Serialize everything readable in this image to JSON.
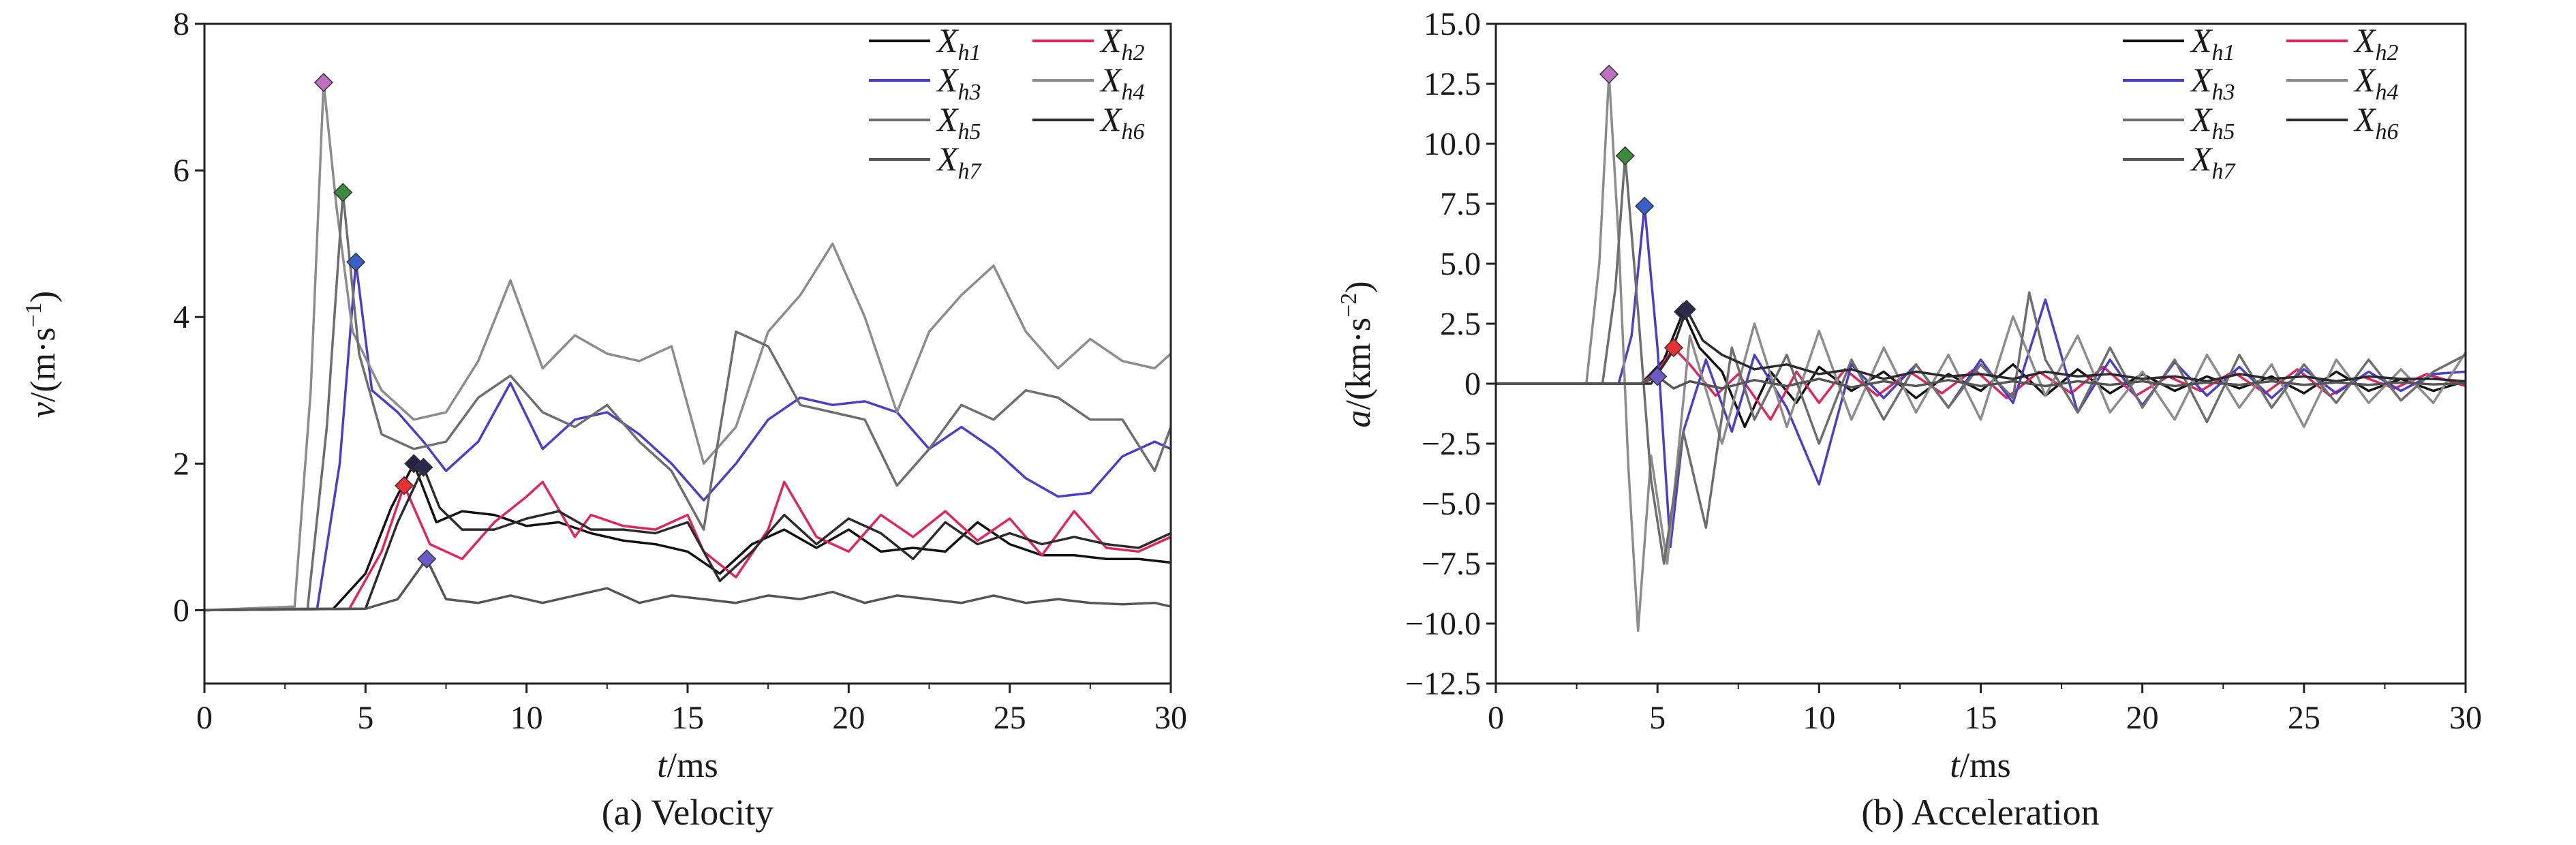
{
  "panels": [
    {
      "id": "velocity",
      "caption": "(a) Velocity",
      "xlabel_var": "t",
      "xlabel_unit": "/ms",
      "ylabel_var": "v",
      "ylabel_unit": "/(m·s",
      "ylabel_sup": "−1",
      "ylabel_close": ")",
      "xticks": [
        "0",
        "5",
        "10",
        "15",
        "20",
        "25",
        "30"
      ],
      "yticks": [
        "0",
        "2",
        "4",
        "6",
        "8"
      ]
    },
    {
      "id": "acceleration",
      "caption": "(b) Acceleration",
      "xlabel_var": "t",
      "xlabel_unit": "/ms",
      "ylabel_var": "a",
      "ylabel_unit": "/(km·s",
      "ylabel_sup": "−2",
      "ylabel_close": ")",
      "xticks": [
        "0",
        "5",
        "10",
        "15",
        "20",
        "25",
        "30"
      ],
      "yticks": [
        "−12.5",
        "−10.0",
        "−7.5",
        "−5.0",
        "−2.5",
        "0",
        "2.5",
        "5.0",
        "7.5",
        "10.0",
        "12.5",
        "15.0"
      ]
    }
  ],
  "legend": [
    {
      "base": "X",
      "sub": "h1",
      "color": "#111111"
    },
    {
      "base": "X",
      "sub": "h2",
      "color": "#e0245e"
    },
    {
      "base": "X",
      "sub": "h3",
      "color": "#4b3fc9"
    },
    {
      "base": "X",
      "sub": "h4",
      "color": "#8c8c8c"
    },
    {
      "base": "X",
      "sub": "h5",
      "color": "#6e6e6e"
    },
    {
      "base": "X",
      "sub": "h6",
      "color": "#2b2b2b"
    },
    {
      "base": "X",
      "sub": "h7",
      "color": "#555555"
    }
  ],
  "chart_data": [
    {
      "type": "line",
      "title": "(a) Velocity",
      "xlabel": "t/ms",
      "ylabel": "v/(m·s⁻¹)",
      "xlim": [
        0,
        30
      ],
      "ylim": [
        -1,
        8
      ],
      "grid": false,
      "legend_position": "top-right",
      "series": [
        {
          "name": "Xh1",
          "color": "#111111",
          "peak": [
            6.5,
            2.0
          ],
          "x": [
            0,
            4,
            5,
            5.8,
            6.5,
            7.2,
            8,
            9,
            10,
            11,
            12,
            13,
            14,
            15,
            16,
            17,
            18,
            19,
            20,
            21,
            22,
            23,
            24,
            25,
            26,
            27,
            28,
            29,
            30
          ],
          "y": [
            0,
            0.02,
            0.5,
            1.4,
            2.0,
            1.2,
            1.35,
            1.3,
            1.15,
            1.2,
            1.05,
            0.95,
            0.9,
            0.8,
            0.5,
            0.9,
            1.1,
            0.85,
            1.1,
            0.8,
            0.85,
            0.8,
            1.2,
            0.9,
            0.75,
            0.75,
            0.7,
            0.7,
            0.65
          ]
        },
        {
          "name": "Xh2",
          "color": "#e0245e",
          "peak": [
            6.2,
            1.7
          ],
          "x": [
            0,
            4.5,
            5.5,
            6.2,
            7,
            8,
            9,
            10,
            10.5,
            11.5,
            12,
            13,
            14,
            15,
            15.5,
            16.5,
            17.5,
            18,
            19,
            20,
            21,
            22,
            23,
            24,
            25,
            26,
            27,
            28,
            29,
            30
          ],
          "y": [
            0,
            0.02,
            0.8,
            1.7,
            0.9,
            0.7,
            1.2,
            1.55,
            1.75,
            1.0,
            1.3,
            1.15,
            1.1,
            1.3,
            0.8,
            0.45,
            1.1,
            1.75,
            1.0,
            0.8,
            1.3,
            1.0,
            1.35,
            0.95,
            1.25,
            0.75,
            1.35,
            0.85,
            0.8,
            1.0
          ]
        },
        {
          "name": "Xh3",
          "color": "#4b3fc9",
          "peak": [
            4.7,
            4.75
          ],
          "x": [
            0,
            3.5,
            4.2,
            4.7,
            5.2,
            6,
            6.8,
            7.5,
            8.5,
            9.5,
            10.5,
            11.5,
            12.5,
            13.5,
            14.5,
            15.5,
            16.5,
            17.5,
            18.5,
            19.5,
            20.5,
            21.5,
            22.5,
            23.5,
            24.5,
            25.5,
            26.5,
            27.5,
            28.5,
            29.5,
            30
          ],
          "y": [
            0,
            0.02,
            2.0,
            4.75,
            3.0,
            2.7,
            2.3,
            1.9,
            2.3,
            3.1,
            2.2,
            2.6,
            2.7,
            2.4,
            2.0,
            1.5,
            2.0,
            2.6,
            2.9,
            2.8,
            2.85,
            2.7,
            2.2,
            2.5,
            2.2,
            1.8,
            1.55,
            1.6,
            2.1,
            2.3,
            2.2
          ]
        },
        {
          "name": "Xh4",
          "color": "#8c8c8c",
          "peak": [
            3.7,
            7.2
          ],
          "x": [
            0,
            2.8,
            3.3,
            3.7,
            4.1,
            4.6,
            5.5,
            6.5,
            7.5,
            8.5,
            9.5,
            10.5,
            11.5,
            12.5,
            13.5,
            14.5,
            15.5,
            16.5,
            17.5,
            18.5,
            19.5,
            20.5,
            21.5,
            22.5,
            23.5,
            24.5,
            25.5,
            26.5,
            27.5,
            28.5,
            29.5,
            30
          ],
          "y": [
            0,
            0.05,
            3.0,
            7.2,
            5.5,
            3.8,
            3.0,
            2.6,
            2.7,
            3.4,
            4.5,
            3.3,
            3.75,
            3.5,
            3.4,
            3.6,
            2.0,
            2.5,
            3.8,
            4.3,
            5.0,
            4.0,
            2.7,
            3.8,
            4.3,
            4.7,
            3.8,
            3.3,
            3.7,
            3.4,
            3.3,
            3.5
          ]
        },
        {
          "name": "Xh5",
          "color": "#6e6e6e",
          "peak": [
            4.3,
            5.7
          ],
          "x": [
            0,
            3.2,
            3.8,
            4.3,
            4.8,
            5.5,
            6.5,
            7.5,
            8.5,
            9.5,
            10.5,
            11.5,
            12.5,
            13.5,
            14.5,
            15.5,
            16.5,
            17.5,
            18.5,
            19.5,
            20.5,
            21.5,
            22.5,
            23.5,
            24.5,
            25.5,
            26.5,
            27.5,
            28.5,
            29.5,
            30
          ],
          "y": [
            0,
            0.02,
            2.5,
            5.7,
            3.5,
            2.4,
            2.2,
            2.3,
            2.9,
            3.2,
            2.7,
            2.5,
            2.8,
            2.3,
            1.9,
            1.1,
            3.8,
            3.6,
            2.8,
            2.7,
            2.6,
            1.7,
            2.2,
            2.8,
            2.6,
            3.0,
            2.9,
            2.6,
            2.6,
            1.9,
            2.5
          ]
        },
        {
          "name": "Xh6",
          "color": "#2b2b2b",
          "peak": [
            6.8,
            1.95
          ],
          "x": [
            0,
            5,
            6,
            6.8,
            7.3,
            8,
            9,
            10,
            11,
            12,
            13,
            14,
            15,
            16,
            17,
            18,
            19,
            20,
            21,
            22,
            23,
            24,
            25,
            26,
            27,
            28,
            29,
            30
          ],
          "y": [
            0,
            0.02,
            1.2,
            1.95,
            1.4,
            1.1,
            1.1,
            1.25,
            1.35,
            1.1,
            1.1,
            1.05,
            1.2,
            0.4,
            0.8,
            1.3,
            0.9,
            1.25,
            1.05,
            0.7,
            1.2,
            0.9,
            1.05,
            0.9,
            1.0,
            0.9,
            0.85,
            1.05
          ]
        },
        {
          "name": "Xh7",
          "color": "#555555",
          "peak": [
            6.9,
            0.7
          ],
          "x": [
            0,
            5,
            6,
            6.9,
            7.5,
            8.5,
            9.5,
            10.5,
            11.5,
            12.5,
            13.5,
            14.5,
            15.5,
            16.5,
            17.5,
            18.5,
            19.5,
            20.5,
            21.5,
            22.5,
            23.5,
            24.5,
            25.5,
            26.5,
            27.5,
            28.5,
            29.5,
            30
          ],
          "y": [
            0,
            0.02,
            0.15,
            0.7,
            0.15,
            0.1,
            0.2,
            0.1,
            0.2,
            0.3,
            0.1,
            0.2,
            0.15,
            0.1,
            0.2,
            0.15,
            0.25,
            0.1,
            0.2,
            0.15,
            0.1,
            0.2,
            0.1,
            0.15,
            0.1,
            0.08,
            0.1,
            0.05
          ]
        }
      ]
    },
    {
      "type": "line",
      "title": "(b) Acceleration",
      "xlabel": "t/ms",
      "ylabel": "a/(km·s⁻²)",
      "xlim": [
        0,
        30
      ],
      "ylim": [
        -12.5,
        15
      ],
      "grid": false,
      "legend_position": "top-right",
      "series": [
        {
          "name": "Xh1",
          "color": "#111111",
          "peak": [
            5.8,
            3.0
          ],
          "x": [
            0,
            4.5,
            5.2,
            5.8,
            6.3,
            7,
            7.7,
            8.5,
            9.3,
            10,
            11,
            12,
            13,
            14,
            15,
            16,
            17,
            18,
            19,
            20,
            21,
            22,
            23,
            24,
            25,
            26,
            27,
            28,
            29,
            30
          ],
          "y": [
            0,
            0,
            1.0,
            3.0,
            1.5,
            0.5,
            -1.8,
            0.5,
            -0.8,
            0.7,
            -0.3,
            0.5,
            -0.6,
            0.4,
            -0.3,
            0.8,
            -0.5,
            0.6,
            -0.4,
            0.4,
            -0.3,
            0.3,
            -0.2,
            0.3,
            -0.4,
            0.5,
            -0.3,
            0.2,
            -0.3,
            0.1
          ]
        },
        {
          "name": "Xh2",
          "color": "#e0245e",
          "peak": [
            5.5,
            1.5
          ],
          "x": [
            0,
            4.5,
            5,
            5.5,
            6,
            6.8,
            7.5,
            8.5,
            9.3,
            10,
            10.8,
            11.8,
            12.8,
            13.8,
            14.8,
            15.8,
            16.8,
            17.8,
            18.8,
            19.8,
            20.8,
            21.8,
            22.8,
            23.8,
            24.8,
            25.8,
            26.8,
            27.8,
            28.8,
            30
          ],
          "y": [
            0,
            0,
            0.5,
            1.5,
            0.8,
            -0.5,
            0.4,
            -1.5,
            0.5,
            -0.8,
            0.6,
            -0.5,
            0.5,
            -0.4,
            0.6,
            -0.6,
            0.5,
            -0.4,
            0.7,
            -0.5,
            0.3,
            -0.3,
            0.5,
            -0.4,
            0.6,
            -0.5,
            0.3,
            -0.2,
            0.4,
            -0.1
          ]
        },
        {
          "name": "Xh3",
          "color": "#4b3fc9",
          "peak": [
            4.6,
            7.4
          ],
          "x": [
            0,
            3.8,
            4.2,
            4.6,
            5.0,
            5.4,
            5.8,
            6.5,
            7.3,
            8,
            9,
            10,
            11,
            12,
            13,
            14,
            15,
            16,
            17,
            18,
            19,
            20,
            21,
            22,
            23,
            24,
            25,
            26,
            27,
            28,
            29,
            30
          ],
          "y": [
            0,
            0,
            2.0,
            7.4,
            1.5,
            -6.8,
            -2.0,
            1.0,
            -2.0,
            1.2,
            -1.0,
            -4.2,
            0.8,
            -0.6,
            0.8,
            -1.0,
            1.0,
            -0.8,
            3.5,
            -1.2,
            1.0,
            -0.9,
            0.9,
            -0.5,
            0.7,
            -0.6,
            0.6,
            -0.4,
            0.5,
            -0.3,
            0.4,
            0.5
          ]
        },
        {
          "name": "Xh4",
          "color": "#8c8c8c",
          "peak": [
            3.5,
            12.9
          ],
          "x": [
            0,
            2.8,
            3.2,
            3.5,
            3.8,
            4.1,
            4.4,
            4.8,
            5.3,
            6,
            7,
            8,
            9,
            10,
            11,
            12,
            13,
            14,
            15,
            16,
            17,
            18,
            19,
            20,
            21,
            22,
            23,
            24,
            25,
            26,
            27,
            28,
            29,
            30
          ],
          "y": [
            0,
            0,
            5.0,
            12.9,
            6.0,
            -3.5,
            -10.3,
            -3.0,
            -7.5,
            2.0,
            -2.5,
            2.5,
            -1.8,
            2.2,
            -1.5,
            1.5,
            -1.2,
            1.2,
            -1.5,
            2.8,
            -0.5,
            2.0,
            -1.2,
            0.5,
            -1.5,
            1.2,
            -1.0,
            0.8,
            -1.8,
            1.0,
            -0.8,
            0.6,
            -0.8,
            1.3
          ]
        },
        {
          "name": "Xh5",
          "color": "#6e6e6e",
          "peak": [
            4.0,
            9.5
          ],
          "x": [
            0,
            3.3,
            3.7,
            4.0,
            4.4,
            4.8,
            5.2,
            5.8,
            6.5,
            7.3,
            8,
            9,
            10,
            11,
            12,
            13,
            14,
            15,
            16,
            16.5,
            17,
            18,
            19,
            20,
            21,
            22,
            23,
            24,
            25,
            26,
            27,
            28,
            29,
            30
          ],
          "y": [
            0,
            0,
            4.0,
            9.5,
            3.0,
            -4.0,
            -7.5,
            -2.0,
            -6.0,
            1.5,
            -1.5,
            1.2,
            -2.5,
            1.0,
            -1.5,
            0.8,
            -1.0,
            0.8,
            -0.6,
            3.8,
            1.0,
            -1.2,
            1.5,
            -1.0,
            1.0,
            -1.6,
            1.2,
            -1.0,
            0.8,
            -0.8,
            1.0,
            -0.7,
            0.5,
            1.2
          ]
        },
        {
          "name": "Xh6",
          "color": "#2b2b2b",
          "peak": [
            5.9,
            3.1
          ],
          "x": [
            0,
            4.8,
            5.4,
            5.9,
            6.4,
            7,
            8,
            9,
            10,
            11,
            12,
            13,
            14,
            15,
            16,
            17,
            18,
            19,
            20,
            21,
            22,
            23,
            24,
            25,
            26,
            27,
            28,
            29,
            30
          ],
          "y": [
            0,
            0,
            1.2,
            3.1,
            1.8,
            1.2,
            0.6,
            0.8,
            0.4,
            0.6,
            0.2,
            0.5,
            0.3,
            0.4,
            0.2,
            0.5,
            0.3,
            0.4,
            0.2,
            0.3,
            0.1,
            0.4,
            0.2,
            0.3,
            0.1,
            0.3,
            0.2,
            0.2,
            0.1
          ]
        },
        {
          "name": "Xh7",
          "color": "#555555",
          "peak": [
            5.0,
            0.3
          ],
          "x": [
            0,
            4.5,
            5.0,
            5.5,
            6,
            7,
            8,
            9,
            10,
            11,
            12,
            13,
            14,
            15,
            16,
            17,
            18,
            19,
            20,
            21,
            22,
            23,
            24,
            25,
            26,
            27,
            28,
            29,
            30
          ],
          "y": [
            0,
            0,
            0.3,
            -0.2,
            0.1,
            -0.2,
            0.15,
            -0.1,
            0.2,
            -0.15,
            0.1,
            -0.1,
            0.15,
            -0.1,
            0.1,
            -0.1,
            0.1,
            -0.05,
            0.1,
            -0.1,
            0.05,
            -0.05,
            0.1,
            -0.05,
            0.05,
            -0.05,
            0.05,
            -0.03,
            0.02
          ]
        }
      ]
    }
  ]
}
